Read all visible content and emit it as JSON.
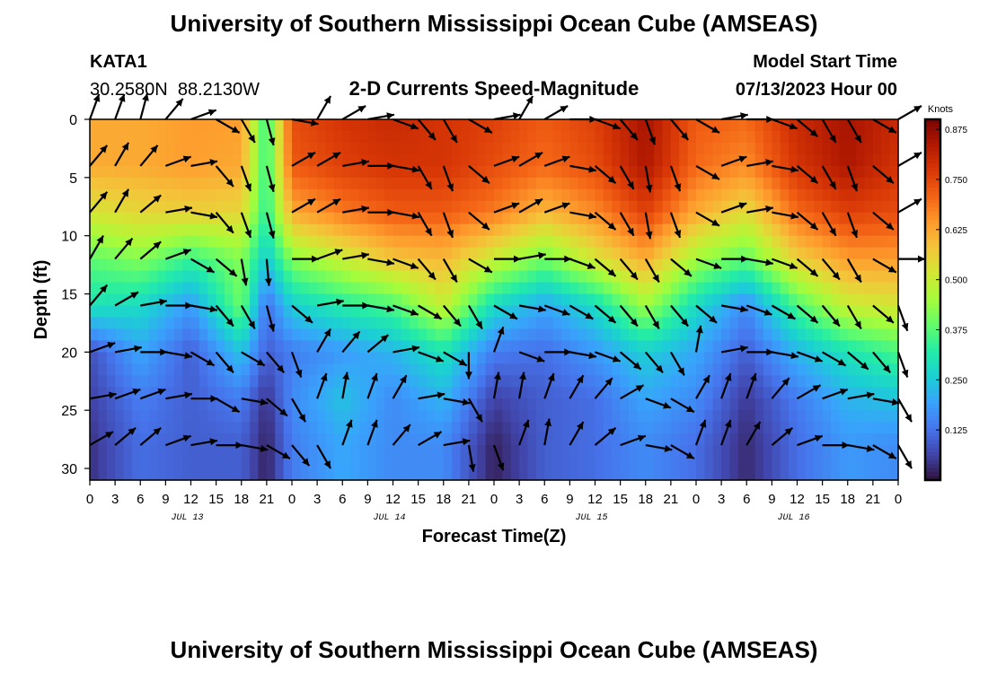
{
  "page": {
    "title": "University of Southern Mississippi Ocean Cube (AMSEAS)",
    "footer_title": "University of Southern Mississippi Ocean Cube (AMSEAS)",
    "station_id": "KATA1",
    "station_coords": "30.2580N  88.2130W",
    "subtitle": "2-D Currents Speed-Magnitude",
    "model_start_label": "Model Start Time",
    "model_start_value": "07/13/2023 Hour 00"
  },
  "chart_data": {
    "type": "heatmap",
    "xlabel": "Forecast Time(Z)",
    "ylabel": "Depth (ft)",
    "x_tick_labels": [
      "0",
      "3",
      "6",
      "9",
      "12",
      "15",
      "18",
      "21",
      "0",
      "3",
      "6",
      "9",
      "12",
      "15",
      "18",
      "21",
      "0",
      "3",
      "6",
      "9",
      "12",
      "15",
      "18",
      "21",
      "0",
      "3",
      "6",
      "9",
      "12",
      "15",
      "18",
      "21",
      "0"
    ],
    "x_hours": [
      0,
      3,
      6,
      9,
      12,
      15,
      18,
      21,
      24,
      27,
      30,
      33,
      36,
      39,
      42,
      45,
      48,
      51,
      54,
      57,
      60,
      63,
      66,
      69,
      72,
      75,
      78,
      81,
      84,
      87,
      90,
      93,
      96
    ],
    "xlim": [
      0,
      96
    ],
    "day_labels": [
      {
        "text": "JUL 13",
        "hour": 12
      },
      {
        "text": "JUL 14",
        "hour": 36
      },
      {
        "text": "JUL 15",
        "hour": 60
      },
      {
        "text": "JUL 16",
        "hour": 84
      }
    ],
    "y_ticks": [
      0,
      5,
      10,
      15,
      20,
      25,
      30
    ],
    "ylim": [
      0,
      31
    ],
    "y_inverted": true,
    "colorbar": {
      "label": "Knots",
      "ticks": [
        0.125,
        0.25,
        0.375,
        0.5,
        0.625,
        0.75,
        0.875
      ],
      "tick_labels": [
        "0.125",
        "0.250",
        "0.375",
        "0.500",
        "0.625",
        "0.750",
        "0.875"
      ],
      "range": [
        0.0,
        0.9
      ],
      "colors": [
        "#30123b",
        "#4145ab",
        "#4675ed",
        "#39a2fc",
        "#1bcfd4",
        "#24eca6",
        "#61fc6c",
        "#a4fc3b",
        "#d1e834",
        "#f3c63a",
        "#fe9b2d",
        "#f36315",
        "#d93806",
        "#b11901",
        "#7a0402"
      ]
    },
    "depths_ft": [
      0,
      4,
      8,
      12,
      16,
      20,
      24,
      28
    ],
    "speed_kn_by_depth_hour": {
      "hours": [
        0,
        6,
        12,
        18,
        21,
        24,
        30,
        36,
        42,
        48,
        54,
        60,
        66,
        72,
        78,
        84,
        90,
        96
      ],
      "rows": [
        [
          0.62,
          0.62,
          0.64,
          0.64,
          0.33,
          0.74,
          0.78,
          0.8,
          0.78,
          0.76,
          0.72,
          0.76,
          0.85,
          0.72,
          0.7,
          0.8,
          0.85,
          0.8
        ],
        [
          0.62,
          0.62,
          0.64,
          0.62,
          0.33,
          0.72,
          0.76,
          0.78,
          0.78,
          0.74,
          0.7,
          0.74,
          0.84,
          0.7,
          0.66,
          0.78,
          0.84,
          0.78
        ],
        [
          0.52,
          0.55,
          0.56,
          0.55,
          0.32,
          0.62,
          0.68,
          0.72,
          0.72,
          0.68,
          0.6,
          0.66,
          0.76,
          0.62,
          0.54,
          0.7,
          0.76,
          0.74
        ],
        [
          0.38,
          0.42,
          0.34,
          0.42,
          0.25,
          0.42,
          0.5,
          0.58,
          0.6,
          0.5,
          0.4,
          0.52,
          0.62,
          0.45,
          0.38,
          0.56,
          0.64,
          0.64
        ],
        [
          0.3,
          0.28,
          0.18,
          0.4,
          0.12,
          0.26,
          0.32,
          0.36,
          0.5,
          0.28,
          0.2,
          0.28,
          0.45,
          0.28,
          0.16,
          0.36,
          0.5,
          0.52
        ],
        [
          0.08,
          0.2,
          0.1,
          0.24,
          0.1,
          0.14,
          0.18,
          0.22,
          0.3,
          0.14,
          0.12,
          0.18,
          0.26,
          0.2,
          0.1,
          0.22,
          0.3,
          0.36
        ],
        [
          0.06,
          0.14,
          0.1,
          0.14,
          0.04,
          0.16,
          0.24,
          0.16,
          0.22,
          0.06,
          0.1,
          0.12,
          0.2,
          0.16,
          0.05,
          0.14,
          0.22,
          0.24
        ],
        [
          0.04,
          0.12,
          0.1,
          0.1,
          0.02,
          0.14,
          0.2,
          0.16,
          0.16,
          0.02,
          0.1,
          0.12,
          0.16,
          0.12,
          0.03,
          0.12,
          0.18,
          0.16
        ]
      ]
    },
    "direction_deg_by_depth_hour": {
      "hours": [
        0,
        3,
        6,
        9,
        12,
        15,
        18,
        21,
        24,
        27,
        30,
        33,
        36,
        39,
        42,
        45,
        48,
        51,
        54,
        57,
        60,
        63,
        66,
        69,
        72,
        75,
        78,
        81,
        84,
        87,
        90,
        93,
        96
      ],
      "rows": [
        [
          20,
          20,
          15,
          40,
          70,
          120,
          150,
          165,
          100,
          30,
          60,
          80,
          110,
          140,
          150,
          120,
          80,
          30,
          60,
          90,
          110,
          140,
          160,
          140,
          120,
          80,
          90,
          110,
          130,
          150,
          150,
          120,
          60
        ],
        [
          40,
          30,
          40,
          70,
          80,
          140,
          160,
          165,
          60,
          60,
          80,
          90,
          100,
          150,
          160,
          130,
          70,
          60,
          70,
          100,
          130,
          150,
          170,
          160,
          120,
          70,
          80,
          100,
          130,
          150,
          160,
          130,
          60
        ],
        [
          40,
          30,
          50,
          80,
          100,
          140,
          160,
          165,
          60,
          60,
          80,
          90,
          100,
          150,
          160,
          130,
          70,
          60,
          70,
          100,
          130,
          150,
          170,
          160,
          120,
          70,
          80,
          100,
          130,
          150,
          160,
          130,
          60
        ],
        [
          30,
          40,
          50,
          70,
          120,
          130,
          170,
          175,
          90,
          70,
          80,
          100,
          110,
          140,
          150,
          120,
          90,
          80,
          90,
          110,
          130,
          140,
          150,
          130,
          110,
          90,
          100,
          110,
          130,
          140,
          150,
          120,
          90
        ],
        [
          40,
          60,
          80,
          90,
          100,
          140,
          150,
          165,
          130,
          80,
          90,
          100,
          110,
          120,
          140,
          150,
          120,
          100,
          110,
          120,
          130,
          140,
          150,
          140,
          130,
          100,
          110,
          120,
          130,
          140,
          150,
          130,
          160
        ],
        [
          70,
          80,
          90,
          100,
          120,
          140,
          120,
          140,
          160,
          30,
          40,
          50,
          80,
          110,
          120,
          180,
          20,
          110,
          90,
          100,
          110,
          130,
          140,
          150,
          10,
          80,
          90,
          100,
          110,
          120,
          130,
          140,
          160
        ],
        [
          80,
          70,
          70,
          80,
          90,
          120,
          100,
          130,
          150,
          20,
          10,
          20,
          30,
          80,
          100,
          150,
          10,
          10,
          20,
          30,
          40,
          60,
          110,
          120,
          30,
          20,
          20,
          40,
          60,
          70,
          80,
          100,
          150
        ],
        [
          60,
          50,
          50,
          70,
          80,
          90,
          100,
          120,
          140,
          150,
          20,
          20,
          40,
          60,
          80,
          170,
          160,
          20,
          10,
          30,
          50,
          70,
          100,
          120,
          20,
          20,
          30,
          50,
          70,
          90,
          100,
          120,
          150
        ]
      ]
    }
  }
}
